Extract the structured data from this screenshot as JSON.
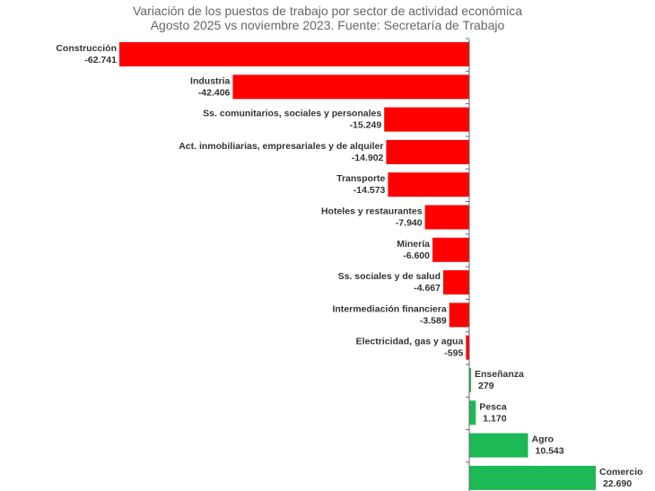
{
  "chart_data": {
    "type": "bar",
    "orientation": "horizontal",
    "title": "Variación de los puestos de trabajo por sector de actividad económica",
    "subtitle": "Agosto 2025 vs noviembre 2023. Fuente: Secretaría de Trabajo",
    "xlabel": "",
    "ylabel": "",
    "xlim": [
      -62741,
      22690
    ],
    "grid": false,
    "legend": "none",
    "colors": {
      "negative": "#ff0000",
      "positive": "#1db954",
      "axis": "#666666",
      "label": "#333333"
    },
    "categories": [
      "Construcción",
      "Industria",
      "Ss. comunitarios, sociales y personales",
      "Act. inmobiliarias, empresariales y de alquiler",
      "Transporte",
      "Hoteles y restaurantes",
      "Minería",
      "Ss. sociales y de salud",
      "Intermediación financiera",
      "Electricidad, gas y agua",
      "Enseñanza",
      "Pesca",
      "Agro",
      "Comercio"
    ],
    "values": [
      -62741,
      -42406,
      -15249,
      -14902,
      -14573,
      -7940,
      -6600,
      -4667,
      -3589,
      -595,
      279,
      1170,
      10543,
      22690
    ],
    "value_labels": [
      "-62.741",
      "-42.406",
      "-15.249",
      "-14.902",
      "-14.573",
      "-7.940",
      "-6.600",
      "-4.667",
      "-3.589",
      "-595",
      "279",
      "1.170",
      "10.543",
      "22.690"
    ]
  }
}
